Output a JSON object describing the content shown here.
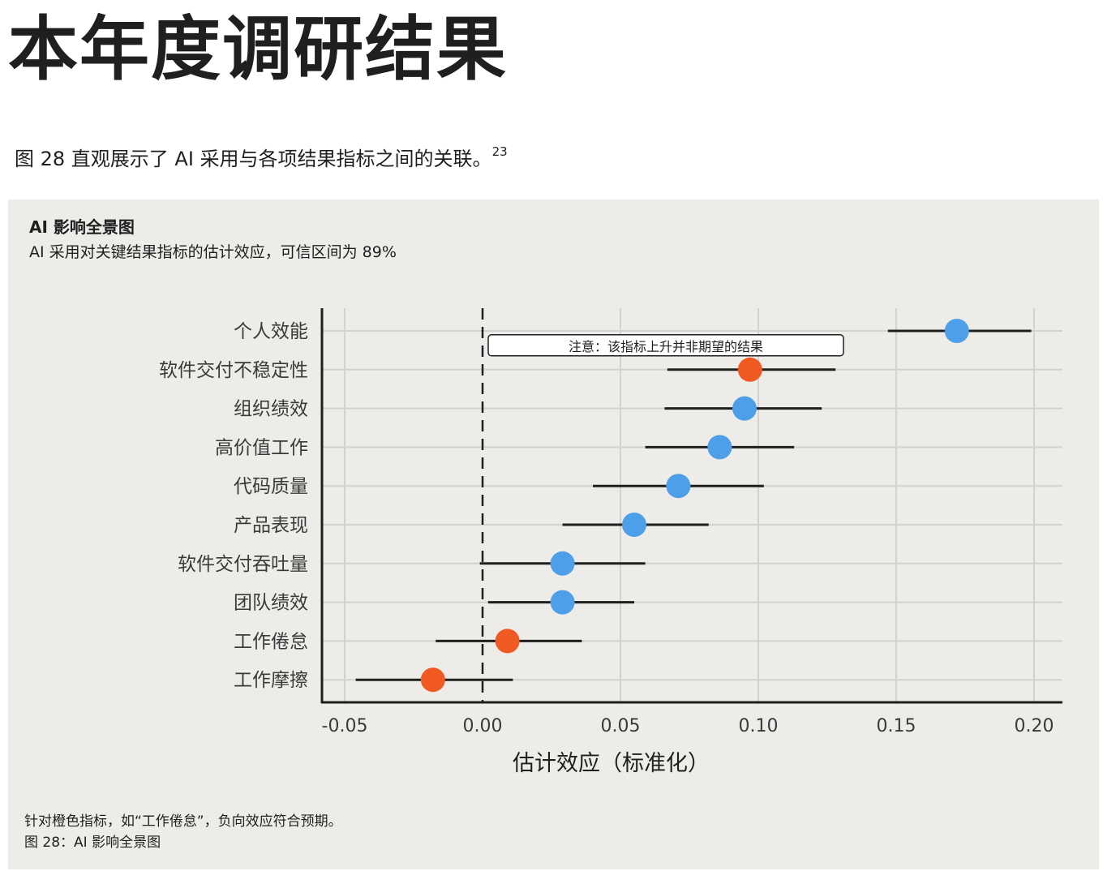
{
  "page": {
    "title": "本年度调研结果",
    "intro_text": "图 28 直观展示了 AI 采用与各项结果指标之间的关联。",
    "intro_footnote_ref": "23"
  },
  "figure": {
    "title": "AI 影响全景图",
    "subtitle": "AI 采用对关键结果指标的估计效应，可信区间为 89%",
    "footnote": "针对橙色指标，如“工作倦怠”，负向效应符合预期。",
    "caption": "图 28：AI 影响全景图"
  },
  "chart_data": {
    "type": "scatter",
    "title": "AI 影响全景图",
    "subtitle": "AI 采用对关键结果指标的估计效应，可信区间为 89%",
    "xlabel": "估计效应（标准化）",
    "ylabel": "",
    "xlim": [
      -0.059,
      0.211
    ],
    "xticks": [
      -0.05,
      0.0,
      0.05,
      0.1,
      0.15,
      0.2
    ],
    "xtick_labels": [
      "-0.05",
      "0.00",
      "0.05",
      "0.10",
      "0.15",
      "0.20"
    ],
    "reference_line": 0.0,
    "grid": true,
    "annotation": {
      "text": "注意：该指标上升并非期望的结果",
      "row": "软件交付不稳定性"
    },
    "colors": {
      "positive": "#4c9fe8",
      "inverse": "#f05a22",
      "errorbar": "#1f1f1f",
      "grid": "#d3d2cf"
    },
    "points": [
      {
        "label": "个人效能",
        "estimate": 0.172,
        "low": 0.147,
        "high": 0.199,
        "inverse": false
      },
      {
        "label": "软件交付不稳定性",
        "estimate": 0.097,
        "low": 0.067,
        "high": 0.128,
        "inverse": true
      },
      {
        "label": "组织绩效",
        "estimate": 0.095,
        "low": 0.066,
        "high": 0.123,
        "inverse": false
      },
      {
        "label": "高价值工作",
        "estimate": 0.086,
        "low": 0.059,
        "high": 0.113,
        "inverse": false
      },
      {
        "label": "代码质量",
        "estimate": 0.071,
        "low": 0.04,
        "high": 0.102,
        "inverse": false
      },
      {
        "label": "产品表现",
        "estimate": 0.055,
        "low": 0.029,
        "high": 0.082,
        "inverse": false
      },
      {
        "label": "软件交付吞吐量",
        "estimate": 0.029,
        "low": -0.001,
        "high": 0.059,
        "inverse": false
      },
      {
        "label": "团队绩效",
        "estimate": 0.029,
        "low": 0.002,
        "high": 0.055,
        "inverse": false
      },
      {
        "label": "工作倦怠",
        "estimate": 0.009,
        "low": -0.017,
        "high": 0.036,
        "inverse": true
      },
      {
        "label": "工作摩擦",
        "estimate": -0.018,
        "low": -0.046,
        "high": 0.011,
        "inverse": true
      }
    ]
  }
}
